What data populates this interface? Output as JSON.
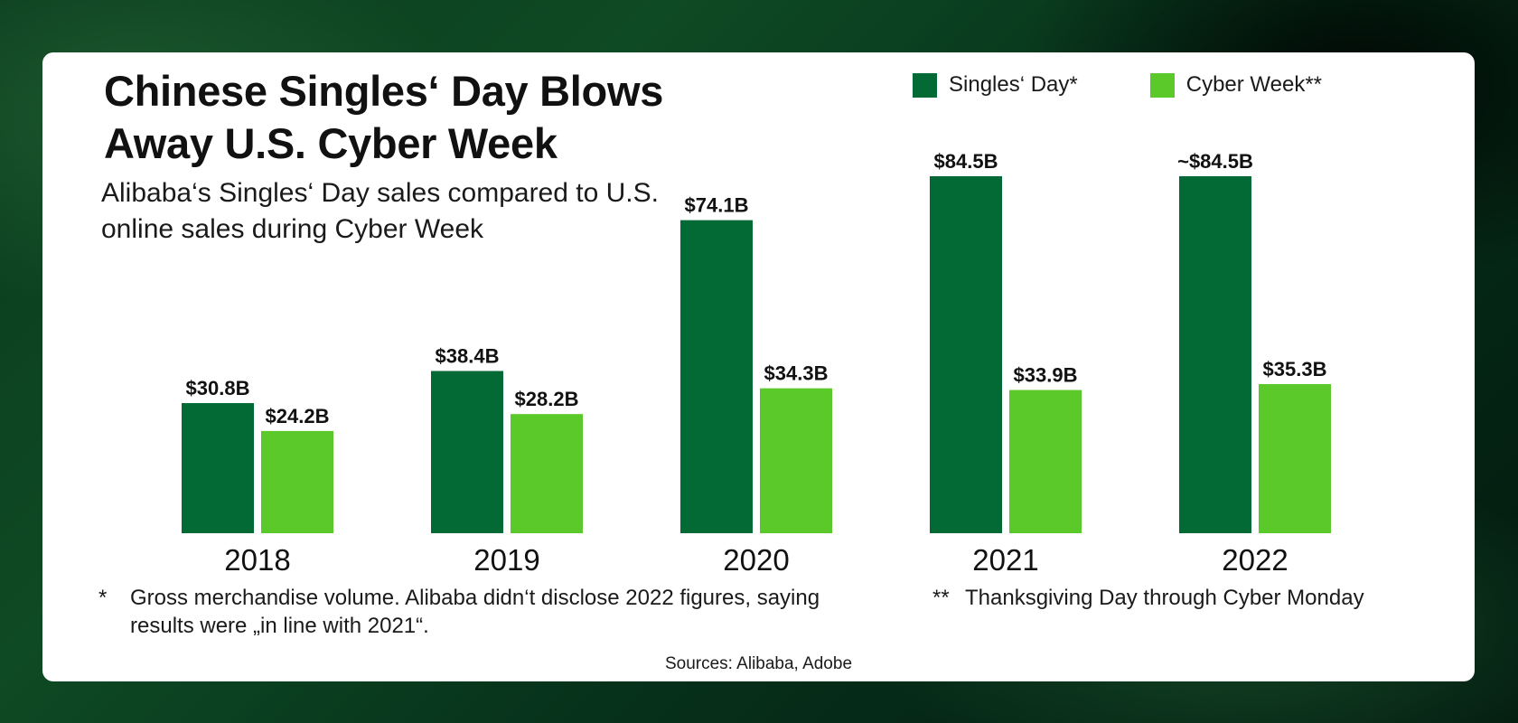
{
  "title": "Chinese Singles‘ Day Blows Away U.S. Cyber Week",
  "subtitle": "Alibaba‘s Singles‘ Day sales compared to U.S. online sales during Cyber Week",
  "legend": [
    {
      "label": "Singles‘ Day*",
      "color": "#036a36"
    },
    {
      "label": "Cyber Week**",
      "color": "#5cc92a"
    }
  ],
  "footnotes": {
    "singles_day": {
      "marker": "*",
      "text": "Gross merchandise volume. Alibaba didn‘t disclose 2022 figures, saying results were „in line with 2021“."
    },
    "cyber_week": {
      "marker": "**",
      "text": "Thanksgiving Day through Cyber Monday"
    }
  },
  "sources": "Sources: Alibaba, Adobe",
  "chart_data": {
    "type": "bar",
    "title": "Chinese Singles‘ Day Blows Away U.S. Cyber Week",
    "subtitle": "Alibaba‘s Singles‘ Day sales compared to U.S. online sales during Cyber Week",
    "categories": [
      "2018",
      "2019",
      "2020",
      "2021",
      "2022"
    ],
    "unit": "billion USD",
    "ylim": [
      0,
      84.5
    ],
    "grid": false,
    "legend_position": "top-right",
    "series": [
      {
        "name": "Singles‘ Day*",
        "color": "#036a36",
        "values": [
          30.8,
          38.4,
          74.1,
          84.5,
          84.5
        ],
        "labels": [
          "$30.8B",
          "$38.4B",
          "$74.1B",
          "$84.5B",
          "~$84.5B"
        ]
      },
      {
        "name": "Cyber Week**",
        "color": "#5cc92a",
        "values": [
          24.2,
          28.2,
          34.3,
          33.9,
          35.3
        ],
        "labels": [
          "$24.2B",
          "$28.2B",
          "$34.3B",
          "$33.9B",
          "$35.3B"
        ]
      }
    ]
  }
}
